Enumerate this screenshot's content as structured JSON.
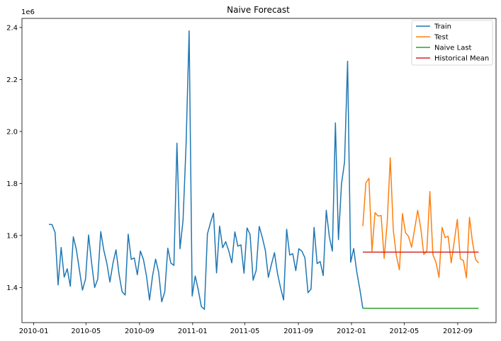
{
  "chart_data": {
    "type": "line",
    "title": "Naive Forecast",
    "xlabel": "",
    "ylabel": "",
    "y_offset_label": "1e6",
    "x_ticks": [
      {
        "date": "2010-01-01",
        "label": "2010-01"
      },
      {
        "date": "2010-05-01",
        "label": "2010-05"
      },
      {
        "date": "2010-09-01",
        "label": "2010-09"
      },
      {
        "date": "2011-01-01",
        "label": "2011-01"
      },
      {
        "date": "2011-05-01",
        "label": "2011-05"
      },
      {
        "date": "2011-09-01",
        "label": "2011-09"
      },
      {
        "date": "2012-01-01",
        "label": "2012-01"
      },
      {
        "date": "2012-05-01",
        "label": "2012-05"
      },
      {
        "date": "2012-09-01",
        "label": "2012-09"
      }
    ],
    "y_ticks": [
      {
        "value": 1.4,
        "label": "1.4"
      },
      {
        "value": 1.6,
        "label": "1.6"
      },
      {
        "value": 1.8,
        "label": "1.8"
      },
      {
        "value": 2.0,
        "label": "2.0"
      },
      {
        "value": 2.2,
        "label": "2.2"
      },
      {
        "value": 2.4,
        "label": "2.4"
      }
    ],
    "xlim": [
      "2009-12-05",
      "2012-11-28"
    ],
    "ylim": [
      1.265,
      2.435
    ],
    "grid": false,
    "legend_position": "top-right",
    "series": [
      {
        "name": "Train",
        "color": "#1f77b4",
        "start_date": "2010-02-05",
        "freq_days": 7,
        "values": [
          1.643,
          1.642,
          1.612,
          1.41,
          1.554,
          1.44,
          1.472,
          1.405,
          1.595,
          1.545,
          1.467,
          1.39,
          1.433,
          1.602,
          1.494,
          1.4,
          1.432,
          1.615,
          1.543,
          1.493,
          1.421,
          1.493,
          1.545,
          1.451,
          1.384,
          1.371,
          1.605,
          1.508,
          1.514,
          1.449,
          1.54,
          1.508,
          1.445,
          1.352,
          1.445,
          1.509,
          1.459,
          1.345,
          1.383,
          1.551,
          1.494,
          1.485,
          1.955,
          1.549,
          1.658,
          1.95,
          2.387,
          1.367,
          1.444,
          1.391,
          1.327,
          1.316,
          1.606,
          1.649,
          1.686,
          1.456,
          1.636,
          1.553,
          1.576,
          1.541,
          1.495,
          1.614,
          1.559,
          1.564,
          1.455,
          1.629,
          1.604,
          1.428,
          1.466,
          1.635,
          1.593,
          1.543,
          1.439,
          1.489,
          1.534,
          1.454,
          1.399,
          1.352,
          1.624,
          1.525,
          1.53,
          1.465,
          1.549,
          1.54,
          1.514,
          1.38,
          1.394,
          1.631,
          1.492,
          1.5,
          1.446,
          1.697,
          1.596,
          1.54,
          2.033,
          1.584,
          1.799,
          1.882,
          2.27,
          1.497,
          1.55,
          1.461,
          1.395,
          1.32
        ]
      },
      {
        "name": "Test",
        "color": "#ff7f0e",
        "start_date": "2012-01-27",
        "freq_days": 7,
        "values": [
          1.636,
          1.802,
          1.82,
          1.54,
          1.688,
          1.675,
          1.677,
          1.512,
          1.65,
          1.899,
          1.621,
          1.522,
          1.468,
          1.684,
          1.611,
          1.596,
          1.555,
          1.624,
          1.697,
          1.63,
          1.527,
          1.54,
          1.769,
          1.526,
          1.497,
          1.439,
          1.631,
          1.592,
          1.597,
          1.495,
          1.577,
          1.662,
          1.51,
          1.504,
          1.437,
          1.67,
          1.573,
          1.508,
          1.494
        ]
      },
      {
        "name": "Naive Last",
        "color": "#2ca02c",
        "start_date": "2012-01-27",
        "freq_days": 7,
        "values": [
          1.32,
          1.32,
          1.32,
          1.32,
          1.32,
          1.32,
          1.32,
          1.32,
          1.32,
          1.32,
          1.32,
          1.32,
          1.32,
          1.32,
          1.32,
          1.32,
          1.32,
          1.32,
          1.32,
          1.32,
          1.32,
          1.32,
          1.32,
          1.32,
          1.32,
          1.32,
          1.32,
          1.32,
          1.32,
          1.32,
          1.32,
          1.32,
          1.32,
          1.32,
          1.32,
          1.32,
          1.32,
          1.32,
          1.32
        ]
      },
      {
        "name": "Historical Mean",
        "color": "#d62728",
        "start_date": "2012-01-27",
        "freq_days": 7,
        "values": [
          1.536,
          1.536,
          1.536,
          1.536,
          1.536,
          1.536,
          1.536,
          1.536,
          1.536,
          1.536,
          1.536,
          1.536,
          1.536,
          1.536,
          1.536,
          1.536,
          1.536,
          1.536,
          1.536,
          1.536,
          1.536,
          1.536,
          1.536,
          1.536,
          1.536,
          1.536,
          1.536,
          1.536,
          1.536,
          1.536,
          1.536,
          1.536,
          1.536,
          1.536,
          1.536,
          1.536,
          1.536,
          1.536,
          1.536
        ]
      }
    ]
  }
}
